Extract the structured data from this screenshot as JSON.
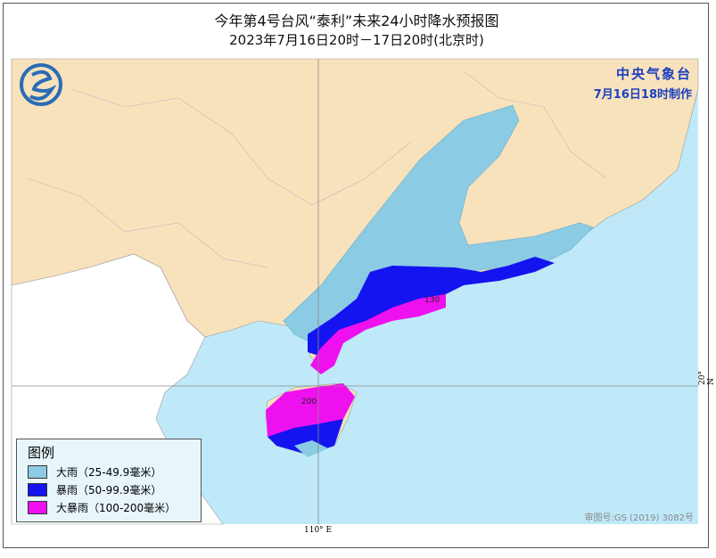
{
  "title": "今年第4号台风“泰利”未来24小时降水预报图",
  "subtitle": "2023年7月16日20时－17日20时(北京时)",
  "agency": {
    "name": "中央气象台",
    "made": "7月16日18时制作"
  },
  "legend": {
    "title": "图例",
    "items": [
      {
        "label": "大雨（25-49.9毫米）",
        "color": "#8ccbe4"
      },
      {
        "label": "暴雨（50-99.9毫米）",
        "color": "#1414f0"
      },
      {
        "label": "大暴雨（100-200毫米）",
        "color": "#ee10ee"
      }
    ]
  },
  "max_labels": [
    "130",
    "200"
  ],
  "colors": {
    "land": "#f8e2bc",
    "sea": "#bfe9f9",
    "foreign_land": "#ffffff"
  },
  "approval": "审图号:GS (2019) 3082号",
  "lon_label": "110° E",
  "lat_label": "20° N"
}
